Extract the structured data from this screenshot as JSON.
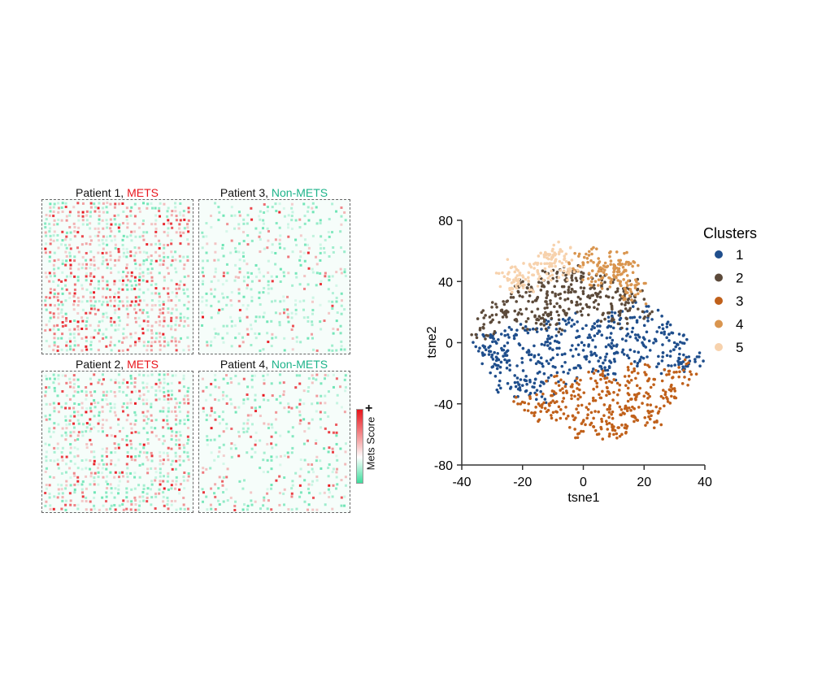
{
  "chart_data": [
    {
      "type": "heatmap",
      "panels": [
        {
          "title_prefix": "Patient 1, ",
          "status": "METS",
          "status_color": "#e8141c",
          "red_fraction": 0.6,
          "density": 0.6
        },
        {
          "title_prefix": "Patient 3, ",
          "status": "Non-METS",
          "status_color": "#1db38a",
          "red_fraction": 0.25,
          "density": 0.3
        },
        {
          "title_prefix": "Patient 2, ",
          "status": "METS",
          "status_color": "#e8141c",
          "red_fraction": 0.45,
          "density": 0.55
        },
        {
          "title_prefix": "Patient 4, ",
          "status": "Non-METS",
          "status_color": "#1db38a",
          "red_fraction": 0.35,
          "density": 0.3
        }
      ],
      "colorbar": {
        "label": "Mets Score",
        "high_marker": "+",
        "high_color": "#e8141c",
        "mid_color": "#ffffff",
        "low_color": "#3ddc9c"
      }
    },
    {
      "type": "scatter",
      "xlabel": "tsne1",
      "ylabel": "tsne2",
      "xlim": [
        -40,
        40
      ],
      "ylim": [
        -80,
        80
      ],
      "xticks": [
        "-40",
        "-20",
        "0",
        "20",
        "40"
      ],
      "yticks": [
        "80",
        "40",
        "0",
        "-40",
        "-80"
      ],
      "legend_title": "Clusters",
      "legend_position": "right",
      "series": [
        {
          "name": "1",
          "color": "#1f4e8c",
          "points": [
            [
              -33,
              -2
            ],
            [
              -30,
              -8
            ],
            [
              -28,
              2
            ],
            [
              -25,
              -12
            ],
            [
              -24,
              -30
            ],
            [
              -20,
              -28
            ],
            [
              -22,
              5
            ],
            [
              -18,
              -5
            ],
            [
              -15,
              -20
            ],
            [
              -12,
              8
            ],
            [
              -10,
              -10
            ],
            [
              -8,
              0
            ],
            [
              -5,
              -20
            ],
            [
              -3,
              12
            ],
            [
              0,
              -5
            ],
            [
              2,
              5
            ],
            [
              5,
              -12
            ],
            [
              8,
              10
            ],
            [
              10,
              -2
            ],
            [
              12,
              15
            ],
            [
              15,
              -10
            ],
            [
              18,
              5
            ],
            [
              20,
              20
            ],
            [
              22,
              -5
            ],
            [
              25,
              10
            ],
            [
              28,
              -15
            ],
            [
              30,
              0
            ],
            [
              33,
              -8
            ],
            [
              35,
              -12
            ],
            [
              -14,
              -32
            ],
            [
              8,
              -18
            ],
            [
              -28,
              -15
            ]
          ]
        },
        {
          "name": "2",
          "color": "#5c4a3a",
          "points": [
            [
              -33,
              10
            ],
            [
              -30,
              18
            ],
            [
              -26,
              25
            ],
            [
              -22,
              15
            ],
            [
              -20,
              30
            ],
            [
              -18,
              38
            ],
            [
              -15,
              22
            ],
            [
              -12,
              32
            ],
            [
              -10,
              42
            ],
            [
              -8,
              15
            ],
            [
              -6,
              28
            ],
            [
              -4,
              38
            ],
            [
              -2,
              20
            ],
            [
              0,
              32
            ],
            [
              3,
              42
            ],
            [
              5,
              25
            ],
            [
              8,
              35
            ],
            [
              10,
              15
            ],
            [
              12,
              28
            ],
            [
              15,
              35
            ],
            [
              18,
              22
            ],
            [
              -14,
              12
            ],
            [
              -5,
              45
            ]
          ]
        },
        {
          "name": "3",
          "color": "#c0601a",
          "points": [
            [
              -18,
              -40
            ],
            [
              -14,
              -45
            ],
            [
              -10,
              -38
            ],
            [
              -5,
              -48
            ],
            [
              -2,
              -30
            ],
            [
              0,
              -58
            ],
            [
              2,
              -40
            ],
            [
              4,
              -25
            ],
            [
              6,
              -50
            ],
            [
              8,
              -32
            ],
            [
              10,
              -55
            ],
            [
              12,
              -42
            ],
            [
              14,
              -28
            ],
            [
              16,
              -48
            ],
            [
              18,
              -20
            ],
            [
              20,
              -35
            ],
            [
              24,
              -42
            ],
            [
              26,
              -25
            ],
            [
              30,
              -30
            ],
            [
              33,
              -18
            ],
            [
              -8,
              -28
            ],
            [
              10,
              -60
            ],
            [
              22,
              -50
            ]
          ]
        },
        {
          "name": "4",
          "color": "#d9954f",
          "points": [
            [
              0,
              52
            ],
            [
              3,
              47
            ],
            [
              5,
              55
            ],
            [
              8,
              50
            ],
            [
              10,
              44
            ],
            [
              12,
              52
            ],
            [
              14,
              47
            ],
            [
              6,
              42
            ],
            [
              14,
              33
            ],
            [
              18,
              32
            ]
          ]
        },
        {
          "name": "5",
          "color": "#f7d2ad",
          "points": [
            [
              -25,
              42
            ],
            [
              -22,
              48
            ],
            [
              -18,
              40
            ],
            [
              -15,
              52
            ],
            [
              -12,
              45
            ],
            [
              -10,
              56
            ],
            [
              -7,
              52
            ],
            [
              -5,
              48
            ],
            [
              -8,
              58
            ],
            [
              -20,
              38
            ]
          ]
        }
      ]
    }
  ]
}
